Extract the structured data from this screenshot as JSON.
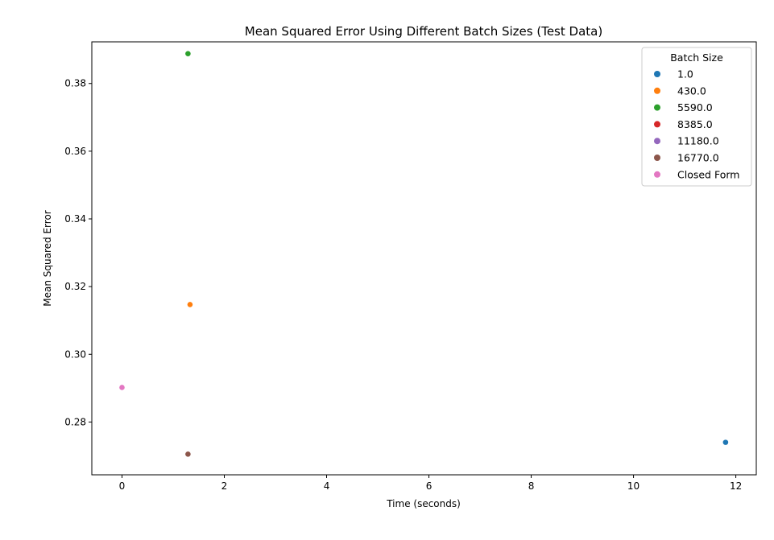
{
  "chart_data": {
    "type": "scatter",
    "title": "Mean Squared Error Using Different Batch Sizes (Test Data)",
    "xlabel": "Time (seconds)",
    "ylabel": "Mean Squared Error",
    "xlim": [
      -0.59,
      12.4
    ],
    "ylim": [
      0.2644,
      0.3923
    ],
    "xticks": [
      0,
      2,
      4,
      6,
      8,
      10,
      12
    ],
    "yticks": [
      0.28,
      0.3,
      0.32,
      0.34,
      0.36,
      0.38
    ],
    "xtick_labels": [
      "0",
      "2",
      "4",
      "6",
      "8",
      "10",
      "12"
    ],
    "ytick_labels": [
      "0.28",
      "0.30",
      "0.32",
      "0.34",
      "0.36",
      "0.38"
    ],
    "grid": false,
    "legend": {
      "title": "Batch Size",
      "placement": "top-right"
    },
    "series": [
      {
        "name": "1.0",
        "color": "#1f77b4",
        "points": [
          {
            "x": 11.8,
            "y": 0.274
          }
        ]
      },
      {
        "name": "430.0",
        "color": "#ff7f0e",
        "points": [
          {
            "x": 1.33,
            "y": 0.3147
          }
        ]
      },
      {
        "name": "5590.0",
        "color": "#2ca02c",
        "points": [
          {
            "x": 1.29,
            "y": 0.3888
          }
        ]
      },
      {
        "name": "8385.0",
        "color": "#d62728",
        "points": []
      },
      {
        "name": "11180.0",
        "color": "#9467bd",
        "points": []
      },
      {
        "name": "16770.0",
        "color": "#8c564b",
        "points": [
          {
            "x": 1.29,
            "y": 0.2705
          }
        ]
      },
      {
        "name": "Closed Form",
        "color": "#e377c2",
        "points": [
          {
            "x": 0.0,
            "y": 0.2902
          }
        ]
      }
    ]
  }
}
